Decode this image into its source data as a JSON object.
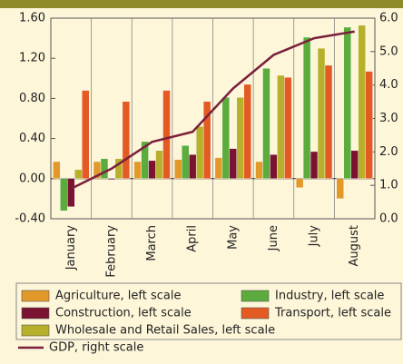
{
  "chart_data": {
    "type": "bar",
    "categories": [
      "January",
      "February",
      "March",
      "April",
      "May",
      "June",
      "July",
      "August"
    ],
    "series": [
      {
        "name": "Agriculture, left scale",
        "color": "#e3992a",
        "values": [
          0.17,
          0.17,
          0.17,
          0.19,
          0.21,
          0.17,
          -0.09,
          -0.2
        ]
      },
      {
        "name": "Industry, left scale",
        "color": "#5bac3c",
        "values": [
          -0.32,
          0.2,
          0.37,
          0.33,
          0.81,
          1.1,
          1.41,
          1.51
        ]
      },
      {
        "name": "Construction, left scale",
        "color": "#7a1232",
        "values": [
          -0.28,
          -0.01,
          0.18,
          0.24,
          0.3,
          0.24,
          0.27,
          0.28
        ]
      },
      {
        "name": "Wholesale and Retail Sales, left scale",
        "color": "#b6b02b",
        "values": [
          0.09,
          0.2,
          0.28,
          0.52,
          0.81,
          1.03,
          1.3,
          1.53
        ]
      },
      {
        "name": "Transport, left scale",
        "color": "#e35b22",
        "values": [
          0.88,
          0.77,
          0.88,
          0.77,
          0.94,
          1.01,
          1.13,
          1.07
        ]
      },
      {
        "name": "GDP, right scale",
        "color": "#7a1f3c",
        "type": "line",
        "axis": "y2",
        "values": [
          0.9,
          1.5,
          2.3,
          2.6,
          3.9,
          4.9,
          5.4,
          5.6
        ]
      }
    ],
    "ylim": [
      -0.4,
      1.6
    ],
    "yticks": [
      {
        "value": -0.4,
        "label": "-0.40"
      },
      {
        "value": 0,
        "label": "0.00"
      },
      {
        "value": 0.4,
        "label": "0.40"
      },
      {
        "value": 0.8,
        "label": "0.80"
      },
      {
        "value": 1.2,
        "label": "1.20"
      },
      {
        "value": 1.6,
        "label": "1.60"
      }
    ],
    "y2lim": [
      0,
      6
    ],
    "y2ticks": [
      {
        "value": 0,
        "label": "0.0"
      },
      {
        "value": 1,
        "label": "1.0"
      },
      {
        "value": 2,
        "label": "2.0"
      },
      {
        "value": 3,
        "label": "3.0"
      },
      {
        "value": 4,
        "label": "4.0"
      },
      {
        "value": 5,
        "label": "5.0"
      },
      {
        "value": 6,
        "label": "6.0"
      }
    ]
  }
}
